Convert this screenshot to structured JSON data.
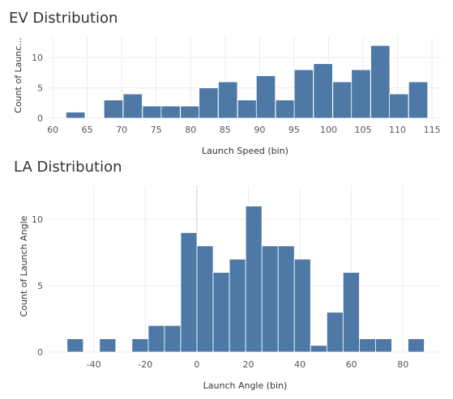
{
  "charts": {
    "ev_title": "EV Distribution",
    "la_title": "LA Distribution"
  },
  "chart_data": [
    {
      "type": "bar",
      "title": "EV Distribution",
      "xlabel": "Launch Speed (bin)",
      "ylabel": "Count of Launc...",
      "bin_size": 2.76,
      "bins": [
        {
          "x": 63.3,
          "count": 1
        },
        {
          "x": 68.8,
          "count": 3
        },
        {
          "x": 71.6,
          "count": 4
        },
        {
          "x": 74.4,
          "count": 2
        },
        {
          "x": 77.1,
          "count": 2
        },
        {
          "x": 79.9,
          "count": 2
        },
        {
          "x": 82.6,
          "count": 5
        },
        {
          "x": 85.4,
          "count": 6
        },
        {
          "x": 88.2,
          "count": 3
        },
        {
          "x": 90.9,
          "count": 7
        },
        {
          "x": 93.7,
          "count": 3
        },
        {
          "x": 96.4,
          "count": 8
        },
        {
          "x": 99.2,
          "count": 9
        },
        {
          "x": 102.0,
          "count": 6
        },
        {
          "x": 104.7,
          "count": 8
        },
        {
          "x": 107.5,
          "count": 12
        },
        {
          "x": 110.2,
          "count": 4
        },
        {
          "x": 113.0,
          "count": 6
        }
      ],
      "xlim": [
        59.4,
        116.4
      ],
      "xticks": [
        60,
        65,
        70,
        75,
        80,
        85,
        90,
        95,
        100,
        105,
        110,
        115
      ],
      "ylim": [
        0,
        13.5
      ],
      "yticks": [
        0,
        5,
        10
      ],
      "grid": true
    },
    {
      "type": "bar",
      "title": "LA Distribution",
      "xlabel": "Launch Angle (bin)",
      "ylabel": "Count of Launch Angle",
      "bin_size": 6.3,
      "bins": [
        {
          "x": -47.2,
          "count": 1
        },
        {
          "x": -34.6,
          "count": 1
        },
        {
          "x": -22.0,
          "count": 1
        },
        {
          "x": -15.7,
          "count": 2
        },
        {
          "x": -9.4,
          "count": 2
        },
        {
          "x": -3.1,
          "count": 9
        },
        {
          "x": 3.2,
          "count": 8
        },
        {
          "x": 9.5,
          "count": 6
        },
        {
          "x": 15.8,
          "count": 7
        },
        {
          "x": 22.1,
          "count": 11
        },
        {
          "x": 28.4,
          "count": 8
        },
        {
          "x": 34.7,
          "count": 8
        },
        {
          "x": 41.0,
          "count": 7
        },
        {
          "x": 47.3,
          "count": 0.5
        },
        {
          "x": 53.6,
          "count": 3
        },
        {
          "x": 59.9,
          "count": 6
        },
        {
          "x": 66.2,
          "count": 1
        },
        {
          "x": 72.5,
          "count": 1
        },
        {
          "x": 85.1,
          "count": 1
        }
      ],
      "xlim": [
        -57.5,
        95.0
      ],
      "xticks": [
        -40,
        -20,
        0,
        20,
        40,
        60,
        80
      ],
      "ylim": [
        0,
        12.5
      ],
      "yticks": [
        0,
        5,
        10
      ],
      "reference_x": 0,
      "grid": true
    }
  ]
}
